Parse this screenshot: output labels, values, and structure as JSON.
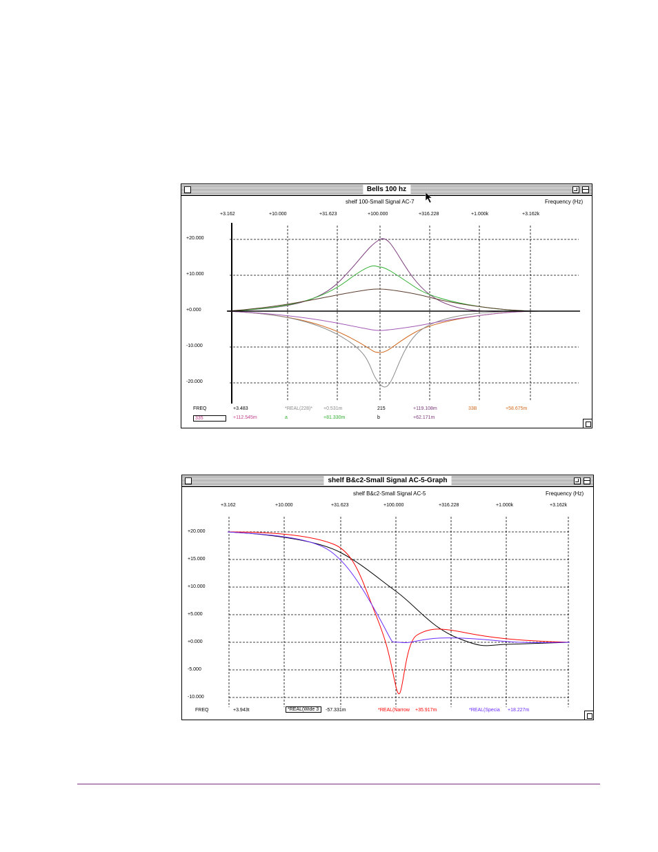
{
  "window1": {
    "title": "Bells 100 hz",
    "subtitle": "shelf 100-Small Signal AC-7",
    "axis_unit": "Frequency   (Hz)",
    "x_ticks": [
      "+3.162",
      "+10.000",
      "+31.623",
      "+100.000",
      "+316.228",
      "+1.000k",
      "+3.162k"
    ],
    "y_ticks": [
      "+20.000",
      "+10.000",
      "+0.000",
      "-10.000",
      "-20.000"
    ],
    "readout_row1": {
      "freq_label": "FREQ",
      "freq_value": "+3.483",
      "t1": "*REAL(228)*",
      "v1": "+0.531m",
      "t2": "215",
      "v2": "+119.108m",
      "t3": "33B",
      "v3": "+58.675m"
    },
    "readout_row2": {
      "t0": "335",
      "v0": "+112.545m",
      "t1": "a",
      "v1": "+81.330m",
      "t2": "b",
      "v2": "+62.171m"
    },
    "series_colors": {
      "peak_purple": "#7b3a7b",
      "peak_green": "#2fae2f",
      "peak_brown": "#5a3a2a",
      "dip_orange": "#d2691e",
      "dip_gray": "#8a8a8a",
      "dip_violet": "#a05ab4",
      "baseline": "#000000"
    }
  },
  "window2": {
    "title": "shelf B&c2-Small Signal AC-5-Graph",
    "subtitle": "shelf B&c2-Small Signal AC-5",
    "axis_unit": "Frequency   (Hz)",
    "x_ticks": [
      "+3.162",
      "+10.000",
      "+31.623",
      "+100.000",
      "+316.228",
      "+1.000k",
      "+3.162k"
    ],
    "y_ticks": [
      "+20.000",
      "+15.000",
      "+10.000",
      "+5.000",
      "+0.000",
      "-5.000",
      "-10.000"
    ],
    "readout": {
      "freq_label": "FREQ",
      "freq_value": "+3.943t",
      "t1": "*REAL(Wide 3",
      "v1": "-57.331m",
      "t2": "*REAL(Narrow",
      "v2": "+35.917m",
      "t3": "*REAL(Specia",
      "v3": "+18.227m"
    },
    "series_colors": {
      "wide": "#000000",
      "narrow": "#ff0000",
      "special": "#6a2aff"
    }
  },
  "footer_rule_color": "#7a2a7a"
}
